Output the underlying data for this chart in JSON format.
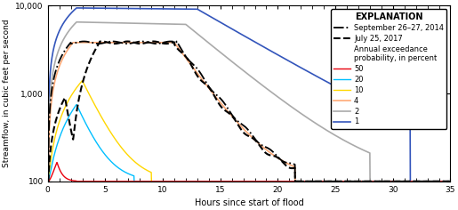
{
  "title": "",
  "xlabel": "Hours since start of flood",
  "ylabel": "Streamflow, in cubic feet per second",
  "xlim": [
    0,
    35
  ],
  "ylim_log": [
    100,
    10000
  ],
  "yticks": [
    100,
    1000,
    10000
  ],
  "ytick_labels": [
    "100",
    "1,000",
    "10,000"
  ],
  "xticks": [
    0,
    5,
    10,
    15,
    20,
    25,
    30,
    35
  ],
  "background_color": "#ffffff",
  "lines": {
    "aep50": {
      "color": "#e8000d",
      "lw": 1.0,
      "label": "50"
    },
    "aep20": {
      "color": "#00bfff",
      "lw": 1.0,
      "label": "20"
    },
    "aep10": {
      "color": "#ffd700",
      "lw": 1.0,
      "label": "10"
    },
    "aep4": {
      "color": "#ffaa77",
      "lw": 1.2,
      "label": "4"
    },
    "aep2": {
      "color": "#aaaaaa",
      "lw": 1.2,
      "label": "2"
    },
    "aep1": {
      "color": "#3355bb",
      "lw": 1.2,
      "label": "1"
    },
    "sep2014": {
      "color": "#000000",
      "lw": 1.3,
      "label": "September 26–27, 2014",
      "ls": "dashdot"
    },
    "jul2017": {
      "color": "#000000",
      "lw": 1.5,
      "label": "July 25, 2017",
      "ls": "dashed"
    }
  },
  "legend_title": "EXPLANATION",
  "legend_fontsize": 6.0,
  "legend_title_fontsize": 7.0
}
